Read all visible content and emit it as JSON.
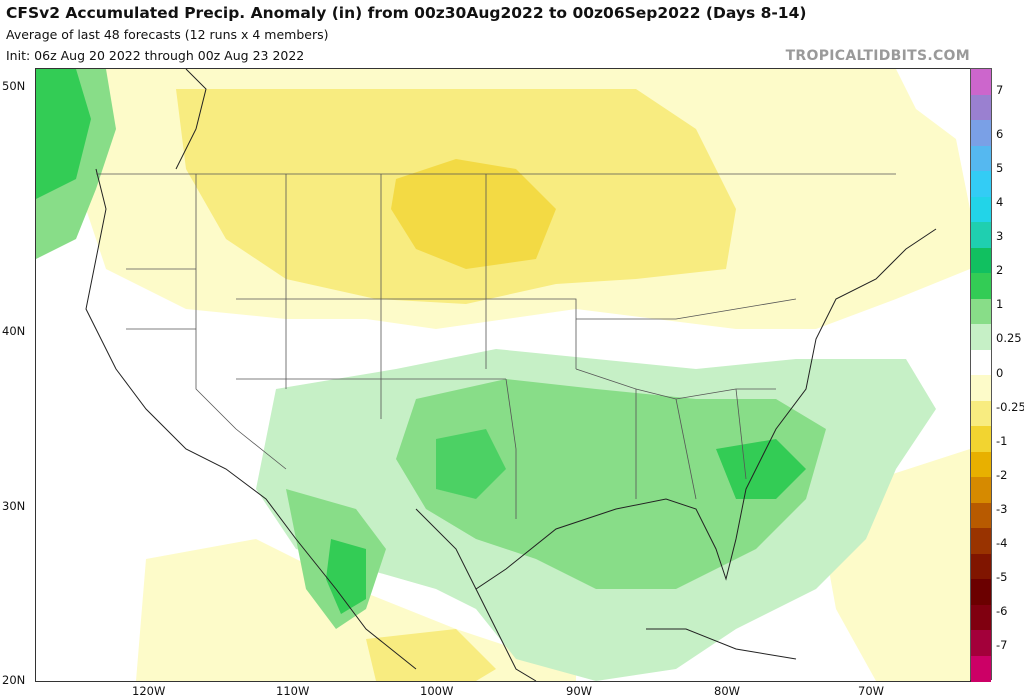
{
  "header": {
    "title": "CFSv2 Accumulated Precip. Anomaly (in) from 00z30Aug2022 to 00z06Sep2022 (Days 8-14)",
    "subtitle1": "Average of last 48 forecasts (12 runs x 4 members)",
    "subtitle2": "Init: 06z Aug 20 2022 through 00z Aug 23 2022",
    "brand": "TROPICALTIDBITS.COM"
  },
  "axes": {
    "lat_labels": [
      "50N",
      "40N",
      "30N",
      "20N"
    ],
    "lon_labels": [
      "120W",
      "110W",
      "100W",
      "90W",
      "80W",
      "70W"
    ]
  },
  "colorbar": {
    "labels": [
      "7",
      "6",
      "5",
      "4",
      "3",
      "2",
      "1",
      "0.25",
      "0",
      "-0.25",
      "-1",
      "-2",
      "-3",
      "-4",
      "-5",
      "-6",
      "-7"
    ],
    "colors": [
      "#cc66cc",
      "#9a80d0",
      "#7aa0e6",
      "#55b8f0",
      "#33ccf5",
      "#22d4e8",
      "#1fcfb0",
      "#11c060",
      "#33cc55",
      "#88dd88",
      "#c6f0c6",
      "#ffffff",
      "#fdfbc9",
      "#f8ec80",
      "#f2d430",
      "#e8b000",
      "#d68a00",
      "#b85a00",
      "#993300",
      "#801500",
      "#6b0000",
      "#800010",
      "#a3003a",
      "#cc0066"
    ]
  }
}
